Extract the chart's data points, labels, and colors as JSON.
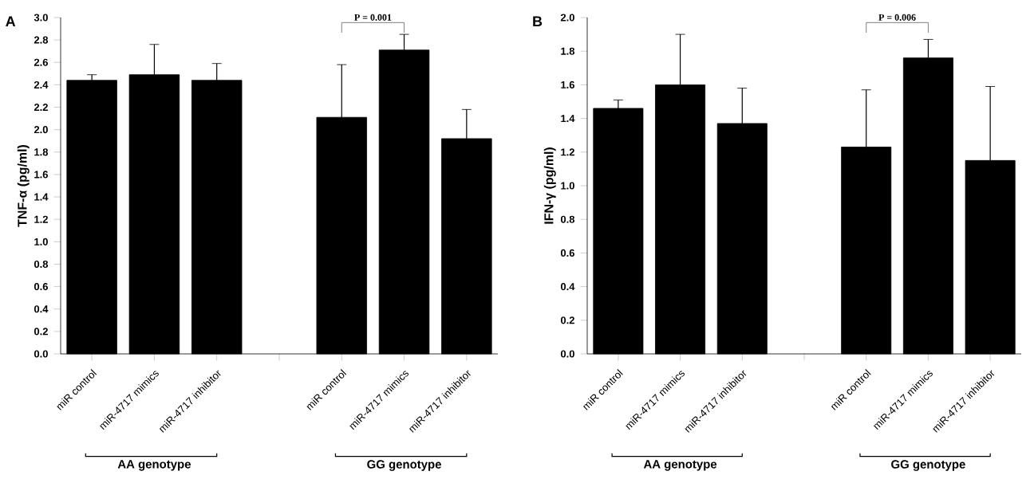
{
  "chart_data": [
    {
      "type": "bar",
      "ylabel": "TNF-α (pg/ml)",
      "categories": [
        "miR control",
        "miR-4717 mimics",
        "miR-4717 inhibitor",
        null,
        "miR control",
        "miR-4717 mimics",
        "miR-4717 inhibitor"
      ],
      "values": [
        2.44,
        2.49,
        2.44,
        null,
        2.11,
        2.71,
        1.92
      ],
      "errors": [
        0.05,
        0.27,
        0.15,
        null,
        0.47,
        0.14,
        0.26
      ],
      "color": "#000000",
      "ylim": [
        0,
        3.0
      ],
      "yticks": [
        {
          "value": 0,
          "label": "0.0"
        },
        0.2,
        0.4,
        0.6,
        0.8,
        {
          "value": 1,
          "label": "1.0"
        },
        1.2,
        1.4,
        1.6,
        1.8,
        {
          "value": 2,
          "label": "2.0"
        },
        2.2,
        2.4,
        2.6,
        2.8,
        {
          "value": 3,
          "label": "3.0"
        }
      ],
      "annotations": [
        "A",
        "P = 0.001",
        "AA genotype",
        "GG genotype"
      ],
      "grid": false
    },
    {
      "type": "bar",
      "ylabel": "IFN-γ (pg/ml)",
      "categories": [
        "miR control",
        "miR-4717 mimics",
        "miR-4717 inhibitor",
        null,
        "miR control",
        "miR-4717 mimics",
        "miR-4717 inhibitor"
      ],
      "values": [
        1.46,
        1.6,
        1.37,
        null,
        1.23,
        1.76,
        1.15
      ],
      "errors": [
        0.05,
        0.3,
        0.21,
        null,
        0.34,
        0.11,
        0.44
      ],
      "color": "#000000",
      "ylim": [
        0,
        2.0
      ],
      "yticks": [
        {
          "value": 0,
          "label": "0.0"
        },
        0.2,
        0.4,
        0.6,
        0.8,
        {
          "value": 1,
          "label": "1.0"
        },
        1.2,
        1.4,
        1.6,
        1.8,
        {
          "value": 2,
          "label": "2.0"
        }
      ],
      "annotations": [
        "B",
        "P = 0.006",
        "AA genotype",
        "GG genotype"
      ],
      "grid": false
    }
  ]
}
